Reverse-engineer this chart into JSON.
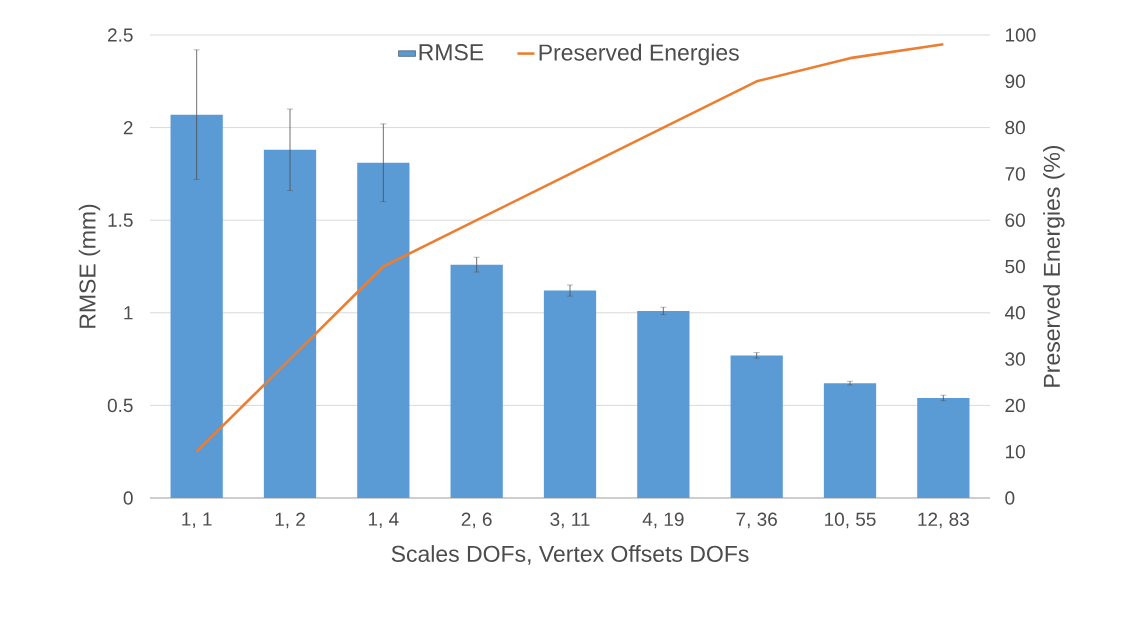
{
  "chart_data": {
    "type": "bar",
    "xlabel": "Scales DOFs, Vertex Offsets DOFs",
    "ylabel": "RMSE (mm)",
    "y2label": "Preserved Energies (%)",
    "categories": [
      "1, 1",
      "1, 2",
      "1, 4",
      "2, 6",
      "3, 11",
      "4, 19",
      "7, 36",
      "10, 55",
      "12, 83"
    ],
    "series": [
      {
        "name": "RMSE",
        "color": "#5b9bd5",
        "values": [
          2.07,
          1.88,
          1.81,
          1.26,
          1.12,
          1.01,
          0.77,
          0.62,
          0.54
        ],
        "errors": [
          0.35,
          0.22,
          0.21,
          0.04,
          0.03,
          0.02,
          0.015,
          0.01,
          0.015
        ]
      },
      {
        "name": "Preserved Energies",
        "type": "line",
        "axis": "y2",
        "color": "#ed7d31",
        "values": [
          10,
          30,
          50,
          60,
          70,
          80,
          90,
          95,
          98
        ]
      }
    ],
    "ylim": [
      0,
      2.5
    ],
    "yticks": [
      0,
      0.5,
      1,
      1.5,
      2,
      2.5
    ],
    "y2lim": [
      0,
      100
    ],
    "y2ticks": [
      0,
      10,
      20,
      30,
      40,
      50,
      60,
      70,
      80,
      90,
      100
    ],
    "grid": "y",
    "legend": "top",
    "marker": "none"
  }
}
